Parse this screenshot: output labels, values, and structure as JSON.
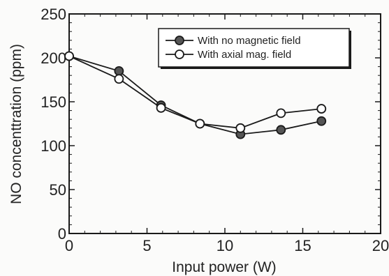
{
  "chart_data": {
    "type": "line",
    "title": "",
    "xlabel": "Input power (W)",
    "ylabel": "NO concenttration (ppm)",
    "xlim": [
      0,
      20
    ],
    "ylim": [
      0,
      250
    ],
    "xticks": [
      0,
      5,
      10,
      15,
      20
    ],
    "yticks": [
      0,
      50,
      100,
      150,
      200,
      250
    ],
    "xtick_labels": [
      "0",
      "5",
      "10",
      "15",
      "20"
    ],
    "ytick_labels": [
      "0",
      "50",
      "100",
      "150",
      "200",
      "250"
    ],
    "grid": false,
    "legend": "top-right",
    "series": [
      {
        "name": "With no magnetic field",
        "marker": "filled-circle",
        "color": "#555555",
        "x": [
          0,
          3.2,
          5.9,
          8.4,
          11.0,
          13.6,
          16.2
        ],
        "y": [
          202,
          185,
          146,
          125,
          113,
          118,
          128
        ]
      },
      {
        "name": "With axial mag. field",
        "marker": "open-circle",
        "color": "#ffffff",
        "x": [
          0,
          3.2,
          5.9,
          8.4,
          11.0,
          13.6,
          16.2
        ],
        "y": [
          202,
          176,
          143,
          125,
          120,
          137,
          142
        ]
      }
    ]
  }
}
